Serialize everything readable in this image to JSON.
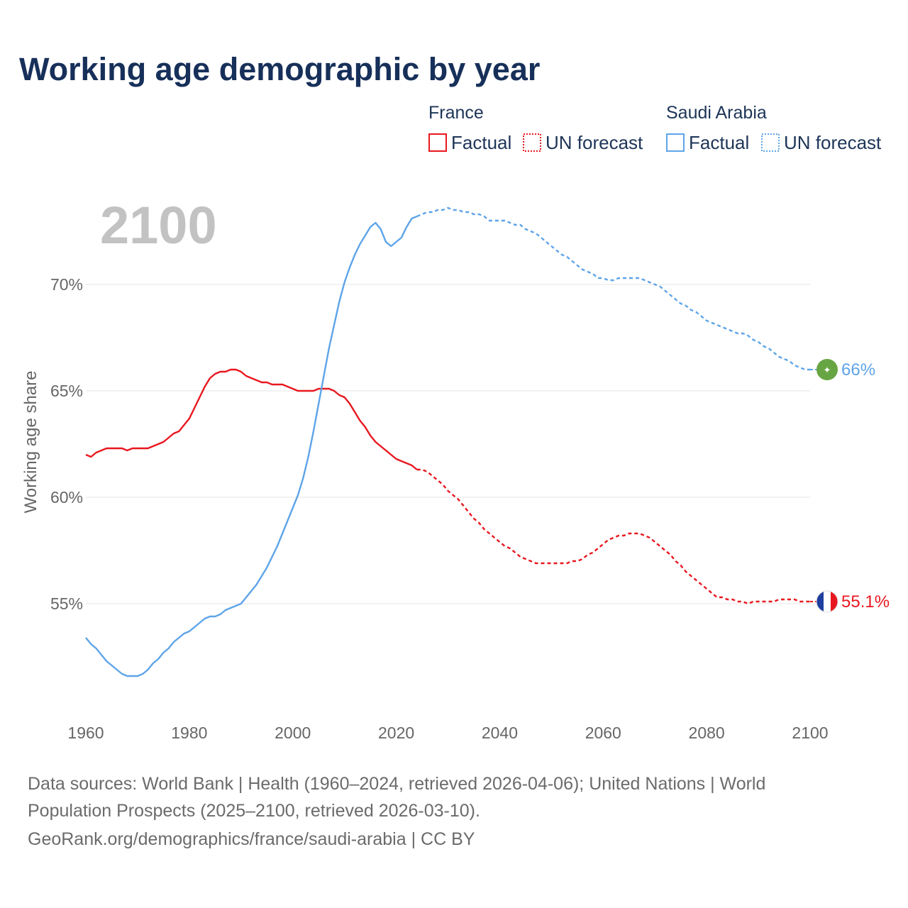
{
  "title": "Working age demographic by year",
  "year_watermark": "2100",
  "colors": {
    "france": "#e8171f",
    "saudi": "#5ea4e8",
    "title": "#17305a",
    "grid": "#e6e6e6",
    "tick": "#666666",
    "watermark": "#c2c2c2",
    "saudi_flag": "#67a543"
  },
  "legend": {
    "groups": [
      {
        "name": "France",
        "items": [
          {
            "label": "Factual",
            "style": "solid"
          },
          {
            "label": "UN forecast",
            "style": "dotted"
          }
        ]
      },
      {
        "name": "Saudi Arabia",
        "items": [
          {
            "label": "Factual",
            "style": "solid"
          },
          {
            "label": "UN forecast",
            "style": "dotted"
          }
        ]
      }
    ]
  },
  "end_labels": {
    "saudi": "66%",
    "france": "55.1%"
  },
  "sources": [
    "Data sources: World Bank | Health (1960–2024, retrieved 2026-04-06); United Nations | World",
    "Population Prospects (2025–2100, retrieved 2026-03-10).",
    "GeoRank.org/demographics/france/saudi-arabia | CC BY"
  ],
  "chart_data": {
    "type": "line",
    "title": "Working age demographic by year",
    "xlabel": "",
    "ylabel": "Working age share",
    "xlim": [
      1960,
      2100
    ],
    "ylim": [
      50,
      73.5
    ],
    "x_ticks": [
      1960,
      1980,
      2000,
      2020,
      2040,
      2060,
      2080,
      2100
    ],
    "y_ticks": [
      55,
      60,
      65,
      70
    ],
    "y_tick_labels": [
      "55%",
      "60%",
      "65%",
      "70%"
    ],
    "grid": "horizontal",
    "legend_position": "top-right",
    "series": [
      {
        "name": "France",
        "factual_range": [
          1960,
          2024
        ],
        "forecast_range": [
          2024,
          2100
        ],
        "points": [
          [
            1960,
            62.0
          ],
          [
            1961,
            61.9
          ],
          [
            1962,
            62.1
          ],
          [
            1963,
            62.2
          ],
          [
            1964,
            62.3
          ],
          [
            1965,
            62.3
          ],
          [
            1966,
            62.3
          ],
          [
            1967,
            62.3
          ],
          [
            1968,
            62.2
          ],
          [
            1969,
            62.3
          ],
          [
            1970,
            62.3
          ],
          [
            1971,
            62.3
          ],
          [
            1972,
            62.3
          ],
          [
            1973,
            62.4
          ],
          [
            1974,
            62.5
          ],
          [
            1975,
            62.6
          ],
          [
            1976,
            62.8
          ],
          [
            1977,
            63.0
          ],
          [
            1978,
            63.1
          ],
          [
            1979,
            63.4
          ],
          [
            1980,
            63.7
          ],
          [
            1981,
            64.2
          ],
          [
            1982,
            64.7
          ],
          [
            1983,
            65.2
          ],
          [
            1984,
            65.6
          ],
          [
            1985,
            65.8
          ],
          [
            1986,
            65.9
          ],
          [
            1987,
            65.9
          ],
          [
            1988,
            66.0
          ],
          [
            1989,
            66.0
          ],
          [
            1990,
            65.9
          ],
          [
            1991,
            65.7
          ],
          [
            1992,
            65.6
          ],
          [
            1993,
            65.5
          ],
          [
            1994,
            65.4
          ],
          [
            1995,
            65.4
          ],
          [
            1996,
            65.3
          ],
          [
            1997,
            65.3
          ],
          [
            1998,
            65.3
          ],
          [
            1999,
            65.2
          ],
          [
            2000,
            65.1
          ],
          [
            2001,
            65.0
          ],
          [
            2002,
            65.0
          ],
          [
            2003,
            65.0
          ],
          [
            2004,
            65.0
          ],
          [
            2005,
            65.1
          ],
          [
            2006,
            65.1
          ],
          [
            2007,
            65.1
          ],
          [
            2008,
            65.0
          ],
          [
            2009,
            64.8
          ],
          [
            2010,
            64.7
          ],
          [
            2011,
            64.4
          ],
          [
            2012,
            64.0
          ],
          [
            2013,
            63.6
          ],
          [
            2014,
            63.3
          ],
          [
            2015,
            62.9
          ],
          [
            2016,
            62.6
          ],
          [
            2017,
            62.4
          ],
          [
            2018,
            62.2
          ],
          [
            2019,
            62.0
          ],
          [
            2020,
            61.8
          ],
          [
            2021,
            61.7
          ],
          [
            2022,
            61.6
          ],
          [
            2023,
            61.5
          ],
          [
            2024,
            61.3
          ],
          [
            2025,
            61.3
          ],
          [
            2026,
            61.2
          ],
          [
            2027,
            61.0
          ],
          [
            2028,
            60.8
          ],
          [
            2029,
            60.6
          ],
          [
            2030,
            60.3
          ],
          [
            2031,
            60.1
          ],
          [
            2032,
            59.9
          ],
          [
            2033,
            59.6
          ],
          [
            2034,
            59.3
          ],
          [
            2035,
            59.0
          ],
          [
            2036,
            58.8
          ],
          [
            2037,
            58.5
          ],
          [
            2038,
            58.3
          ],
          [
            2039,
            58.1
          ],
          [
            2040,
            57.9
          ],
          [
            2041,
            57.7
          ],
          [
            2042,
            57.6
          ],
          [
            2043,
            57.4
          ],
          [
            2044,
            57.2
          ],
          [
            2045,
            57.1
          ],
          [
            2046,
            57.0
          ],
          [
            2047,
            56.9
          ],
          [
            2048,
            56.9
          ],
          [
            2049,
            56.9
          ],
          [
            2050,
            56.9
          ],
          [
            2051,
            56.9
          ],
          [
            2052,
            56.9
          ],
          [
            2053,
            56.9
          ],
          [
            2054,
            57.0
          ],
          [
            2055,
            57.0
          ],
          [
            2056,
            57.1
          ],
          [
            2057,
            57.3
          ],
          [
            2058,
            57.4
          ],
          [
            2059,
            57.6
          ],
          [
            2060,
            57.8
          ],
          [
            2061,
            58.0
          ],
          [
            2062,
            58.1
          ],
          [
            2063,
            58.2
          ],
          [
            2064,
            58.2
          ],
          [
            2065,
            58.3
          ],
          [
            2066,
            58.3
          ],
          [
            2067,
            58.3
          ],
          [
            2068,
            58.2
          ],
          [
            2069,
            58.1
          ],
          [
            2070,
            57.9
          ],
          [
            2071,
            57.7
          ],
          [
            2072,
            57.5
          ],
          [
            2073,
            57.3
          ],
          [
            2074,
            57.0
          ],
          [
            2075,
            56.8
          ],
          [
            2076,
            56.5
          ],
          [
            2077,
            56.3
          ],
          [
            2078,
            56.1
          ],
          [
            2079,
            55.9
          ],
          [
            2080,
            55.7
          ],
          [
            2081,
            55.5
          ],
          [
            2082,
            55.3
          ],
          [
            2083,
            55.3
          ],
          [
            2084,
            55.2
          ],
          [
            2085,
            55.2
          ],
          [
            2086,
            55.1
          ],
          [
            2087,
            55.1
          ],
          [
            2088,
            55.0
          ],
          [
            2089,
            55.1
          ],
          [
            2090,
            55.1
          ],
          [
            2091,
            55.1
          ],
          [
            2092,
            55.1
          ],
          [
            2093,
            55.1
          ],
          [
            2094,
            55.2
          ],
          [
            2095,
            55.2
          ],
          [
            2096,
            55.2
          ],
          [
            2097,
            55.2
          ],
          [
            2098,
            55.1
          ],
          [
            2099,
            55.1
          ],
          [
            2100,
            55.1
          ]
        ]
      },
      {
        "name": "Saudi Arabia",
        "factual_range": [
          1960,
          2024
        ],
        "forecast_range": [
          2024,
          2100
        ],
        "points": [
          [
            1960,
            53.4
          ],
          [
            1961,
            53.1
          ],
          [
            1962,
            52.9
          ],
          [
            1963,
            52.6
          ],
          [
            1964,
            52.3
          ],
          [
            1965,
            52.1
          ],
          [
            1966,
            51.9
          ],
          [
            1967,
            51.7
          ],
          [
            1968,
            51.6
          ],
          [
            1969,
            51.6
          ],
          [
            1970,
            51.6
          ],
          [
            1971,
            51.7
          ],
          [
            1972,
            51.9
          ],
          [
            1973,
            52.2
          ],
          [
            1974,
            52.4
          ],
          [
            1975,
            52.7
          ],
          [
            1976,
            52.9
          ],
          [
            1977,
            53.2
          ],
          [
            1978,
            53.4
          ],
          [
            1979,
            53.6
          ],
          [
            1980,
            53.7
          ],
          [
            1981,
            53.9
          ],
          [
            1982,
            54.1
          ],
          [
            1983,
            54.3
          ],
          [
            1984,
            54.4
          ],
          [
            1985,
            54.4
          ],
          [
            1986,
            54.5
          ],
          [
            1987,
            54.7
          ],
          [
            1988,
            54.8
          ],
          [
            1989,
            54.9
          ],
          [
            1990,
            55.0
          ],
          [
            1991,
            55.3
          ],
          [
            1992,
            55.6
          ],
          [
            1993,
            55.9
          ],
          [
            1994,
            56.3
          ],
          [
            1995,
            56.7
          ],
          [
            1996,
            57.2
          ],
          [
            1997,
            57.7
          ],
          [
            1998,
            58.3
          ],
          [
            1999,
            58.9
          ],
          [
            2000,
            59.5
          ],
          [
            2001,
            60.1
          ],
          [
            2002,
            60.9
          ],
          [
            2003,
            61.9
          ],
          [
            2004,
            63.1
          ],
          [
            2005,
            64.4
          ],
          [
            2006,
            65.7
          ],
          [
            2007,
            67.0
          ],
          [
            2008,
            68.1
          ],
          [
            2009,
            69.2
          ],
          [
            2010,
            70.1
          ],
          [
            2011,
            70.8
          ],
          [
            2012,
            71.4
          ],
          [
            2013,
            71.9
          ],
          [
            2014,
            72.3
          ],
          [
            2015,
            72.7
          ],
          [
            2016,
            72.9
          ],
          [
            2017,
            72.6
          ],
          [
            2018,
            72.0
          ],
          [
            2019,
            71.8
          ],
          [
            2020,
            72.0
          ],
          [
            2021,
            72.2
          ],
          [
            2022,
            72.7
          ],
          [
            2023,
            73.1
          ],
          [
            2024,
            73.2
          ],
          [
            2025,
            73.3
          ],
          [
            2026,
            73.4
          ],
          [
            2027,
            73.4
          ],
          [
            2028,
            73.5
          ],
          [
            2029,
            73.5
          ],
          [
            2030,
            73.6
          ],
          [
            2031,
            73.5
          ],
          [
            2032,
            73.5
          ],
          [
            2033,
            73.4
          ],
          [
            2034,
            73.4
          ],
          [
            2035,
            73.3
          ],
          [
            2036,
            73.3
          ],
          [
            2037,
            73.2
          ],
          [
            2038,
            73.0
          ],
          [
            2039,
            73.0
          ],
          [
            2040,
            73.0
          ],
          [
            2041,
            73.0
          ],
          [
            2042,
            72.9
          ],
          [
            2043,
            72.8
          ],
          [
            2044,
            72.8
          ],
          [
            2045,
            72.6
          ],
          [
            2046,
            72.5
          ],
          [
            2047,
            72.4
          ],
          [
            2048,
            72.2
          ],
          [
            2049,
            72.0
          ],
          [
            2050,
            71.8
          ],
          [
            2051,
            71.6
          ],
          [
            2052,
            71.4
          ],
          [
            2053,
            71.3
          ],
          [
            2054,
            71.1
          ],
          [
            2055,
            70.9
          ],
          [
            2056,
            70.7
          ],
          [
            2057,
            70.6
          ],
          [
            2058,
            70.5
          ],
          [
            2059,
            70.3
          ],
          [
            2060,
            70.3
          ],
          [
            2061,
            70.2
          ],
          [
            2062,
            70.2
          ],
          [
            2063,
            70.3
          ],
          [
            2064,
            70.3
          ],
          [
            2065,
            70.3
          ],
          [
            2066,
            70.3
          ],
          [
            2067,
            70.3
          ],
          [
            2068,
            70.2
          ],
          [
            2069,
            70.1
          ],
          [
            2070,
            70.0
          ],
          [
            2071,
            69.9
          ],
          [
            2072,
            69.7
          ],
          [
            2073,
            69.5
          ],
          [
            2074,
            69.3
          ],
          [
            2075,
            69.1
          ],
          [
            2076,
            69.0
          ],
          [
            2077,
            68.8
          ],
          [
            2078,
            68.7
          ],
          [
            2079,
            68.5
          ],
          [
            2080,
            68.3
          ],
          [
            2081,
            68.2
          ],
          [
            2082,
            68.1
          ],
          [
            2083,
            68.0
          ],
          [
            2084,
            67.9
          ],
          [
            2085,
            67.8
          ],
          [
            2086,
            67.7
          ],
          [
            2087,
            67.7
          ],
          [
            2088,
            67.6
          ],
          [
            2089,
            67.4
          ],
          [
            2090,
            67.3
          ],
          [
            2091,
            67.1
          ],
          [
            2092,
            67.0
          ],
          [
            2093,
            66.8
          ],
          [
            2094,
            66.6
          ],
          [
            2095,
            66.5
          ],
          [
            2096,
            66.4
          ],
          [
            2097,
            66.2
          ],
          [
            2098,
            66.1
          ],
          [
            2099,
            66.0
          ],
          [
            2100,
            66.0
          ]
        ]
      }
    ]
  }
}
